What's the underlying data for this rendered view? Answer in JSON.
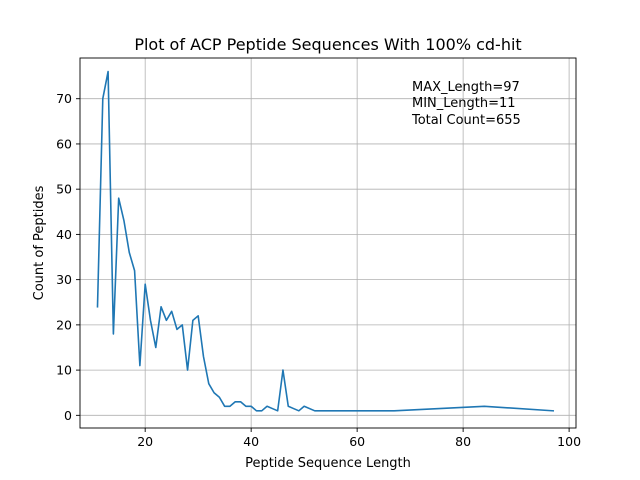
{
  "chart_data": {
    "type": "line",
    "title": "Plot of ACP Peptide Sequences With 100% cd-hit",
    "xlabel": "Peptide Sequence Length",
    "ylabel": "Count of Peptides",
    "xlim": [
      7.7,
      101.3
    ],
    "ylim": [
      -2.8,
      79.0
    ],
    "xticks": [
      20,
      40,
      60,
      80,
      100
    ],
    "yticks": [
      0,
      10,
      20,
      30,
      40,
      50,
      60,
      70
    ],
    "grid": true,
    "line_color": "#1f77b4",
    "series": [
      {
        "x": [
          11,
          12,
          13,
          14,
          15,
          16,
          17,
          18,
          19,
          20,
          21,
          22,
          23,
          24,
          25,
          26,
          27,
          28,
          29,
          30,
          31,
          32,
          33,
          34,
          35,
          36,
          37,
          38,
          39,
          40,
          41,
          42,
          43,
          44,
          45,
          46,
          47,
          48,
          49,
          50,
          52,
          67,
          84,
          97
        ],
        "values": [
          24,
          70,
          76,
          18,
          48,
          43,
          36,
          32,
          11,
          29,
          21,
          15,
          24,
          21,
          23,
          19,
          20,
          10,
          21,
          22,
          13,
          7,
          5,
          4,
          2,
          2,
          3,
          3,
          2,
          2,
          1,
          1,
          2,
          1.5,
          1,
          10,
          2,
          1.5,
          1,
          2,
          1,
          1,
          2,
          1
        ]
      }
    ],
    "annotations": [
      "MAX_Length=97",
      "MIN_Length=11",
      "Total Count=655"
    ]
  }
}
